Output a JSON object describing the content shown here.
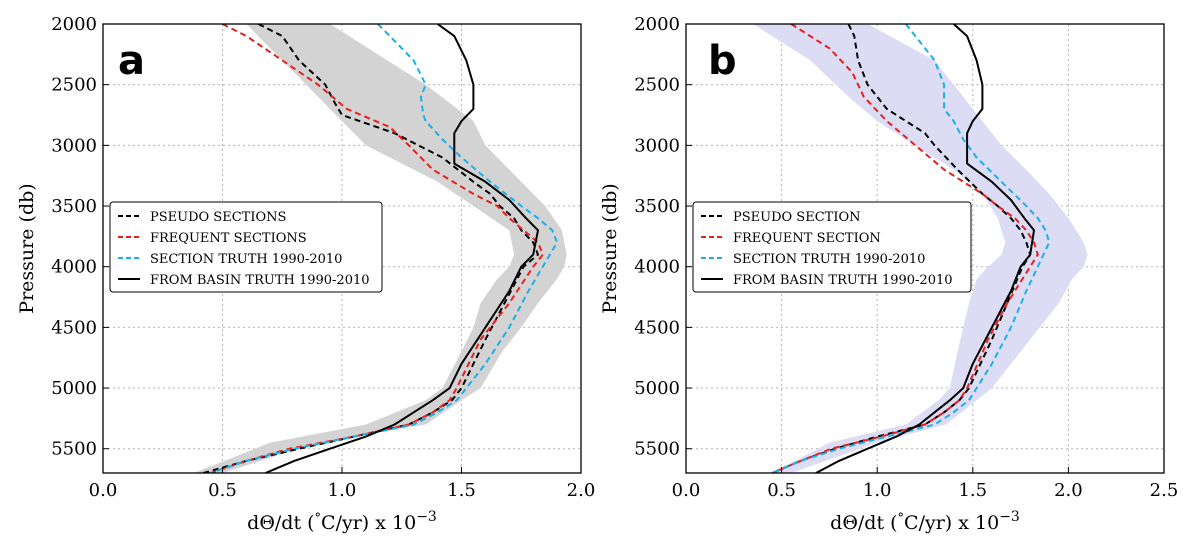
{
  "colors": {
    "pseudo": "#000000",
    "frequent": "#e8201c",
    "section_truth": "#1ab0e8",
    "basin_truth": "#000000",
    "shade_a": "#d3d3d3",
    "shade_b": "#dcdcf5"
  },
  "chart_data": [
    {
      "type": "line",
      "panel_label": "a",
      "xlabel": "dΘ/dt (",
      "xlabel_degree": "°",
      "xlabel_unit": "C/yr)  x  10",
      "xlabel_exp": "−3",
      "ylabel": "Pressure (db)",
      "xlim": [
        0.0,
        2.0
      ],
      "ylim": [
        5700,
        2000
      ],
      "y_inverted": true,
      "xticks": [
        "0.0",
        "0.5",
        "1.0",
        "1.5",
        "2.0"
      ],
      "xtick_values": [
        0.0,
        0.5,
        1.0,
        1.5,
        2.0
      ],
      "yticks": [
        "2000",
        "2500",
        "3000",
        "3500",
        "4000",
        "4500",
        "5000",
        "5500"
      ],
      "ytick_values": [
        2000,
        2500,
        3000,
        3500,
        4000,
        4500,
        5000,
        5500
      ],
      "grid": true,
      "legend_position": "center-left",
      "band": {
        "pressure": [
          2000,
          2500,
          2800,
          3000,
          3300,
          3500,
          3700,
          3900,
          4000,
          4100,
          4300,
          4500,
          4700,
          5000,
          5100,
          5300,
          5450,
          5700
        ],
        "lower": [
          0.6,
          0.85,
          1.0,
          1.1,
          1.4,
          1.55,
          1.7,
          1.72,
          1.7,
          1.65,
          1.58,
          1.55,
          1.5,
          1.42,
          1.35,
          1.1,
          0.7,
          0.38
        ],
        "upper": [
          0.95,
          1.35,
          1.55,
          1.6,
          1.75,
          1.85,
          1.92,
          1.94,
          1.93,
          1.9,
          1.82,
          1.75,
          1.67,
          1.58,
          1.5,
          1.35,
          0.9,
          0.5
        ]
      },
      "series": [
        {
          "name": "PSEUDO SECTIONS",
          "style": "dashed",
          "color_key": "pseudo",
          "pressure": [
            2000,
            2100,
            2300,
            2500,
            2650,
            2750,
            2900,
            3000,
            3100,
            3300,
            3400,
            3500,
            3600,
            3700,
            3800,
            3900,
            4000,
            4300,
            4600,
            5000,
            5100,
            5200,
            5300,
            5400,
            5500,
            5600,
            5700
          ],
          "value": [
            0.65,
            0.75,
            0.82,
            0.93,
            0.97,
            1.0,
            1.22,
            1.32,
            1.42,
            1.55,
            1.62,
            1.66,
            1.72,
            1.75,
            1.8,
            1.82,
            1.76,
            1.68,
            1.6,
            1.5,
            1.46,
            1.38,
            1.28,
            1.05,
            0.82,
            0.6,
            0.42
          ]
        },
        {
          "name": "FREQUENT SECTIONS",
          "style": "dashed",
          "color_key": "frequent",
          "pressure": [
            2000,
            2100,
            2300,
            2500,
            2700,
            2850,
            3000,
            3200,
            3400,
            3500,
            3600,
            3700,
            3800,
            3900,
            4000,
            4300,
            4600,
            5000,
            5100,
            5200,
            5300,
            5400,
            5500,
            5600,
            5700
          ],
          "value": [
            0.5,
            0.6,
            0.75,
            0.9,
            1.02,
            1.2,
            1.28,
            1.38,
            1.55,
            1.65,
            1.7,
            1.76,
            1.82,
            1.84,
            1.8,
            1.7,
            1.58,
            1.48,
            1.45,
            1.38,
            1.28,
            1.05,
            0.78,
            0.6,
            0.45
          ]
        },
        {
          "name": "SECTION TRUTH 1990-2010",
          "style": "dashed",
          "color_key": "section_truth",
          "pressure": [
            2000,
            2100,
            2300,
            2500,
            2600,
            2750,
            2800,
            2950,
            3100,
            3300,
            3500,
            3600,
            3700,
            3800,
            3900,
            4000,
            4200,
            4500,
            4800,
            5000,
            5100,
            5200,
            5300,
            5400,
            5500,
            5600,
            5700
          ],
          "value": [
            1.15,
            1.2,
            1.3,
            1.35,
            1.33,
            1.34,
            1.35,
            1.42,
            1.5,
            1.62,
            1.75,
            1.82,
            1.88,
            1.9,
            1.87,
            1.84,
            1.78,
            1.7,
            1.6,
            1.52,
            1.48,
            1.4,
            1.3,
            1.05,
            0.8,
            0.6,
            0.45
          ]
        },
        {
          "name": "FROM BASIN TRUTH 1990-2010",
          "style": "solid",
          "color_key": "basin_truth",
          "pressure": [
            2000,
            2100,
            2300,
            2500,
            2600,
            2700,
            2800,
            2900,
            3000,
            3150,
            3300,
            3450,
            3600,
            3700,
            3800,
            3900,
            4000,
            4200,
            4500,
            4800,
            5000,
            5100,
            5200,
            5300,
            5400,
            5500,
            5600,
            5700
          ],
          "value": [
            1.4,
            1.47,
            1.52,
            1.55,
            1.55,
            1.55,
            1.5,
            1.47,
            1.47,
            1.47,
            1.6,
            1.7,
            1.77,
            1.82,
            1.81,
            1.8,
            1.75,
            1.7,
            1.6,
            1.5,
            1.45,
            1.38,
            1.3,
            1.22,
            1.1,
            0.95,
            0.8,
            0.68
          ]
        }
      ]
    },
    {
      "type": "line",
      "panel_label": "b",
      "xlabel": "dΘ/dt (",
      "xlabel_degree": "°",
      "xlabel_unit": "C/yr)  x  10",
      "xlabel_exp": "−3",
      "ylabel": "Pressure (db)",
      "xlim": [
        0.0,
        2.5
      ],
      "ylim": [
        5700,
        2000
      ],
      "y_inverted": true,
      "xticks": [
        "0.0",
        "0.5",
        "1.0",
        "1.5",
        "2.0",
        "2.5"
      ],
      "xtick_values": [
        0.0,
        0.5,
        1.0,
        1.5,
        2.0,
        2.5
      ],
      "yticks": [
        "2000",
        "2500",
        "3000",
        "3500",
        "4000",
        "4500",
        "5000",
        "5500"
      ],
      "ytick_values": [
        2000,
        2500,
        3000,
        3500,
        4000,
        4500,
        5000,
        5500
      ],
      "grid": true,
      "legend_position": "center-left",
      "band": {
        "pressure": [
          2000,
          2300,
          2600,
          2800,
          3000,
          3200,
          3400,
          3600,
          3800,
          3900,
          4000,
          4100,
          4300,
          4500,
          4700,
          5000,
          5100,
          5300,
          5450,
          5700
        ],
        "lower": [
          0.35,
          0.65,
          0.85,
          1.0,
          1.2,
          1.4,
          1.55,
          1.63,
          1.67,
          1.65,
          1.58,
          1.52,
          1.48,
          1.45,
          1.42,
          1.38,
          1.32,
          1.15,
          0.75,
          0.45
        ],
        "upper": [
          0.95,
          1.3,
          1.45,
          1.55,
          1.65,
          1.78,
          1.9,
          2.0,
          2.08,
          2.1,
          2.08,
          2.02,
          1.95,
          1.85,
          1.75,
          1.6,
          1.52,
          1.36,
          1.0,
          0.55
        ]
      },
      "series": [
        {
          "name": "PSEUDO SECTION",
          "style": "dashed",
          "color_key": "pseudo",
          "pressure": [
            2000,
            2100,
            2300,
            2500,
            2700,
            2800,
            2900,
            3000,
            3200,
            3400,
            3500,
            3600,
            3700,
            3800,
            3900,
            4000,
            4300,
            4600,
            5000,
            5100,
            5200,
            5300,
            5400,
            5500,
            5600,
            5700
          ],
          "value": [
            0.85,
            0.88,
            0.9,
            0.95,
            1.05,
            1.15,
            1.25,
            1.3,
            1.42,
            1.55,
            1.63,
            1.7,
            1.75,
            1.78,
            1.8,
            1.76,
            1.68,
            1.6,
            1.48,
            1.43,
            1.35,
            1.25,
            1.0,
            0.78,
            0.6,
            0.45
          ]
        },
        {
          "name": "FREQUENT SECTION",
          "style": "dashed",
          "color_key": "frequent",
          "pressure": [
            2000,
            2200,
            2400,
            2600,
            2800,
            3000,
            3200,
            3400,
            3500,
            3600,
            3700,
            3800,
            3900,
            4000,
            4300,
            4600,
            5000,
            5100,
            5200,
            5300,
            5400,
            5500,
            5600,
            5700
          ],
          "value": [
            0.55,
            0.75,
            0.87,
            0.93,
            1.05,
            1.2,
            1.35,
            1.55,
            1.63,
            1.72,
            1.78,
            1.82,
            1.84,
            1.8,
            1.68,
            1.58,
            1.47,
            1.43,
            1.35,
            1.25,
            1.02,
            0.76,
            0.6,
            0.45
          ]
        },
        {
          "name": "SECTION TRUTH 1990-2010",
          "style": "dashed",
          "color_key": "section_truth",
          "pressure": [
            2000,
            2100,
            2300,
            2500,
            2700,
            2800,
            2950,
            3100,
            3300,
            3500,
            3600,
            3700,
            3800,
            3900,
            4000,
            4200,
            4500,
            4800,
            5000,
            5100,
            5200,
            5300,
            5400,
            5500,
            5600,
            5700
          ],
          "value": [
            1.15,
            1.2,
            1.3,
            1.35,
            1.35,
            1.4,
            1.45,
            1.52,
            1.65,
            1.78,
            1.84,
            1.88,
            1.9,
            1.87,
            1.84,
            1.78,
            1.7,
            1.6,
            1.52,
            1.48,
            1.4,
            1.3,
            1.05,
            0.8,
            0.6,
            0.45
          ]
        },
        {
          "name": "FROM BASIN TRUTH 1990-2010",
          "style": "solid",
          "color_key": "basin_truth",
          "pressure": [
            2000,
            2100,
            2300,
            2500,
            2600,
            2700,
            2800,
            2900,
            3000,
            3150,
            3300,
            3450,
            3600,
            3700,
            3800,
            3900,
            4000,
            4200,
            4500,
            4800,
            5000,
            5100,
            5200,
            5300,
            5400,
            5500,
            5600,
            5700
          ],
          "value": [
            1.4,
            1.47,
            1.52,
            1.55,
            1.55,
            1.55,
            1.5,
            1.47,
            1.47,
            1.47,
            1.6,
            1.7,
            1.77,
            1.82,
            1.81,
            1.8,
            1.75,
            1.7,
            1.6,
            1.5,
            1.45,
            1.38,
            1.3,
            1.22,
            1.1,
            0.95,
            0.8,
            0.68
          ]
        }
      ]
    }
  ]
}
